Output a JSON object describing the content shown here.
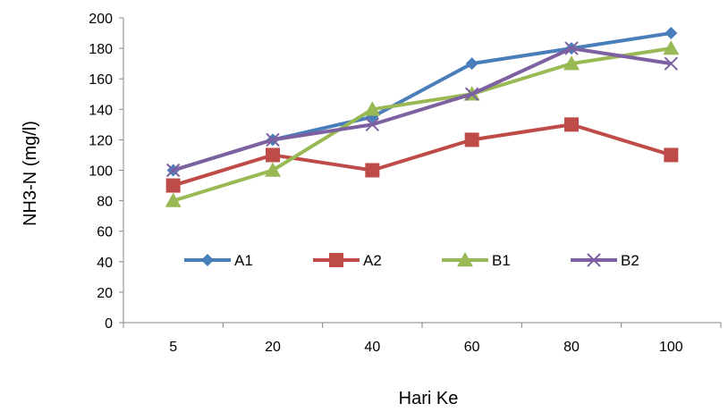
{
  "chart_data": {
    "type": "line",
    "title": "",
    "xlabel": "Hari Ke",
    "ylabel": "NH3-N (mg/l)",
    "categories": [
      "5",
      "20",
      "40",
      "60",
      "80",
      "100"
    ],
    "ylim": [
      0,
      200
    ],
    "yticks": [
      0,
      20,
      40,
      60,
      80,
      100,
      120,
      140,
      160,
      180,
      200
    ],
    "grid": false,
    "legend_position": "inside-center",
    "series": [
      {
        "name": "A1",
        "values": [
          100,
          120,
          135,
          170,
          180,
          190
        ],
        "color": "#4a7ebb",
        "marker": "diamond"
      },
      {
        "name": "A2",
        "values": [
          90,
          110,
          100,
          120,
          130,
          110
        ],
        "color": "#be4b48",
        "marker": "square"
      },
      {
        "name": "B1",
        "values": [
          80,
          100,
          140,
          150,
          170,
          180
        ],
        "color": "#98b954",
        "marker": "triangle"
      },
      {
        "name": "B2",
        "values": [
          100,
          120,
          130,
          150,
          180,
          170
        ],
        "color": "#7d60a0",
        "marker": "x"
      }
    ]
  }
}
